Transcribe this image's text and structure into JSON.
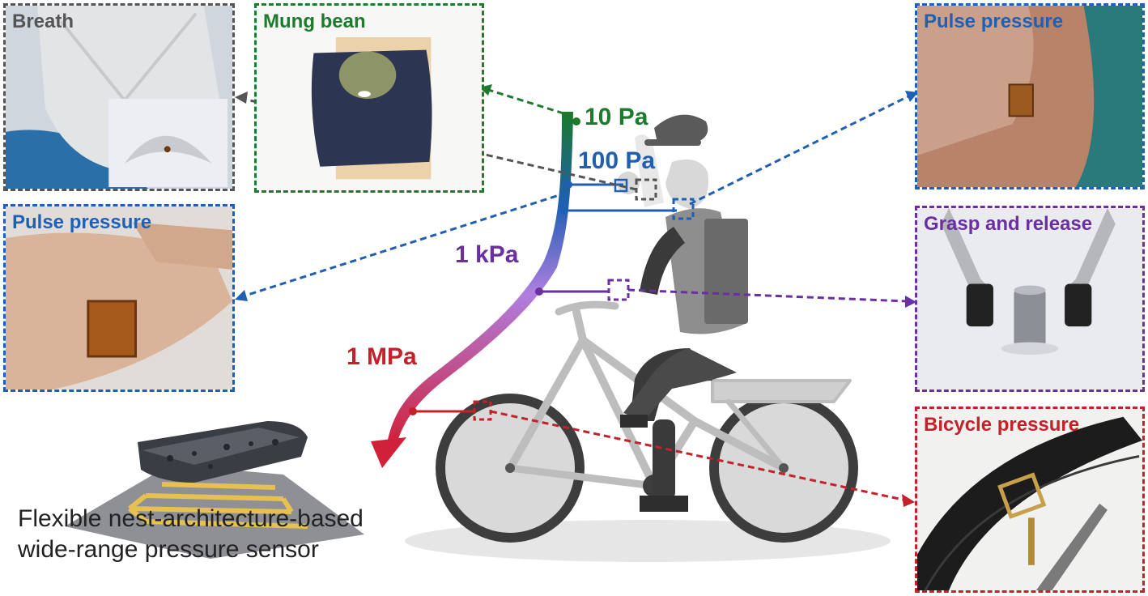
{
  "colors": {
    "breath": "#555555",
    "mung": "#1d7a2e",
    "pulse": "#1f5fb4",
    "grasp": "#6a2fa0",
    "bicycle": "#c4212b",
    "scale_top": "#1a7a2a",
    "scale_mid": "#1f5fb4",
    "scale_low": "#b07fe0",
    "scale_bottom": "#d0203a"
  },
  "panels": {
    "breath": {
      "label": "Breath"
    },
    "mung_bean": {
      "label": "Mung bean"
    },
    "pulse_neck": {
      "label": "Pulse pressure"
    },
    "pulse_wrist": {
      "label": "Pulse pressure"
    },
    "grasp": {
      "label": "Grasp and release"
    },
    "bicycle": {
      "label": "Bicycle pressure"
    }
  },
  "scale": {
    "labels": [
      "10 Pa",
      "100 Pa",
      "1 kPa",
      "1 MPa"
    ]
  },
  "caption": {
    "line1": "Flexible nest-architecture-based",
    "line2": "wide-range pressure sensor"
  }
}
